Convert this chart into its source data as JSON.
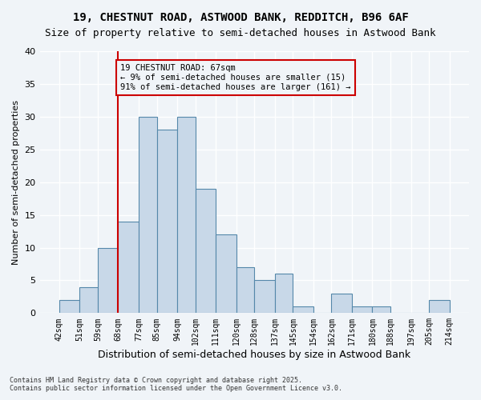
{
  "title1": "19, CHESTNUT ROAD, ASTWOOD BANK, REDDITCH, B96 6AF",
  "title2": "Size of property relative to semi-detached houses in Astwood Bank",
  "xlabel": "Distribution of semi-detached houses by size in Astwood Bank",
  "ylabel": "Number of semi-detached properties",
  "annotation_title": "19 CHESTNUT ROAD: 67sqm",
  "annotation_line1": "← 9% of semi-detached houses are smaller (15)",
  "annotation_line2": "91% of semi-detached houses are larger (161) →",
  "footer1": "Contains HM Land Registry data © Crown copyright and database right 2025.",
  "footer2": "Contains public sector information licensed under the Open Government Licence v3.0.",
  "bin_labels": [
    "42sqm",
    "51sqm",
    "59sqm",
    "68sqm",
    "77sqm",
    "85sqm",
    "94sqm",
    "102sqm",
    "111sqm",
    "120sqm",
    "128sqm",
    "137sqm",
    "145sqm",
    "154sqm",
    "162sqm",
    "171sqm",
    "180sqm",
    "188sqm",
    "197sqm",
    "205sqm",
    "214sqm"
  ],
  "bin_edges": [
    42,
    51,
    59,
    68,
    77,
    85,
    94,
    102,
    111,
    120,
    128,
    137,
    145,
    154,
    162,
    171,
    180,
    188,
    197,
    205,
    214
  ],
  "bar_values": [
    2,
    4,
    10,
    14,
    30,
    28,
    30,
    19,
    12,
    7,
    5,
    6,
    1,
    0,
    3,
    1,
    1,
    0,
    0,
    2
  ],
  "property_value": 67,
  "bar_color": "#c8d8e8",
  "bar_edge_color": "#5588aa",
  "vline_color": "#cc0000",
  "vline_x": 68,
  "annotation_box_color": "#cc0000",
  "background_color": "#f0f4f8",
  "grid_color": "#ffffff",
  "ylim": [
    0,
    40
  ],
  "yticks": [
    0,
    5,
    10,
    15,
    20,
    25,
    30,
    35,
    40
  ]
}
